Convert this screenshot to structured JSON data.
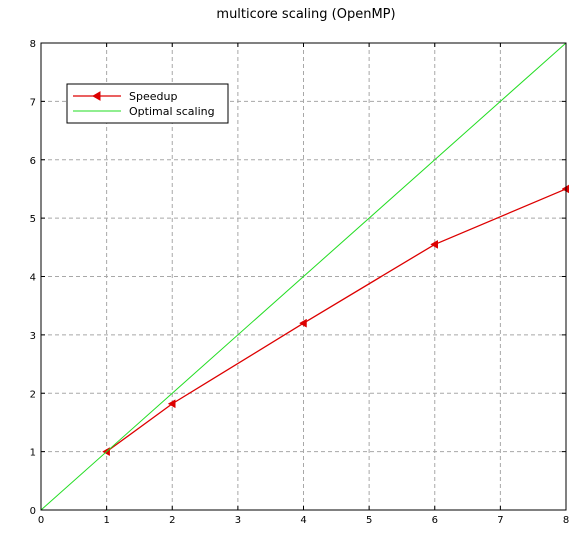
{
  "chart_data": {
    "type": "line",
    "title": "multicore scaling (OpenMP)",
    "xlabel": "",
    "ylabel": "",
    "xlim": [
      0,
      8
    ],
    "ylim": [
      0,
      8
    ],
    "xticks": [
      0,
      1,
      2,
      3,
      4,
      5,
      6,
      7,
      8
    ],
    "yticks": [
      0,
      1,
      2,
      3,
      4,
      5,
      6,
      7,
      8
    ],
    "grid": true,
    "legend_position": "top-left",
    "series": [
      {
        "name": "Speedup",
        "color": "#dd0000",
        "marker": "left-triangle",
        "x": [
          1,
          2,
          4,
          6,
          8
        ],
        "y": [
          1.0,
          1.82,
          3.2,
          4.55,
          5.5
        ]
      },
      {
        "name": "Optimal scaling",
        "color": "#22dd22",
        "marker": "none",
        "x": [
          0,
          8
        ],
        "y": [
          0,
          8
        ]
      }
    ]
  }
}
